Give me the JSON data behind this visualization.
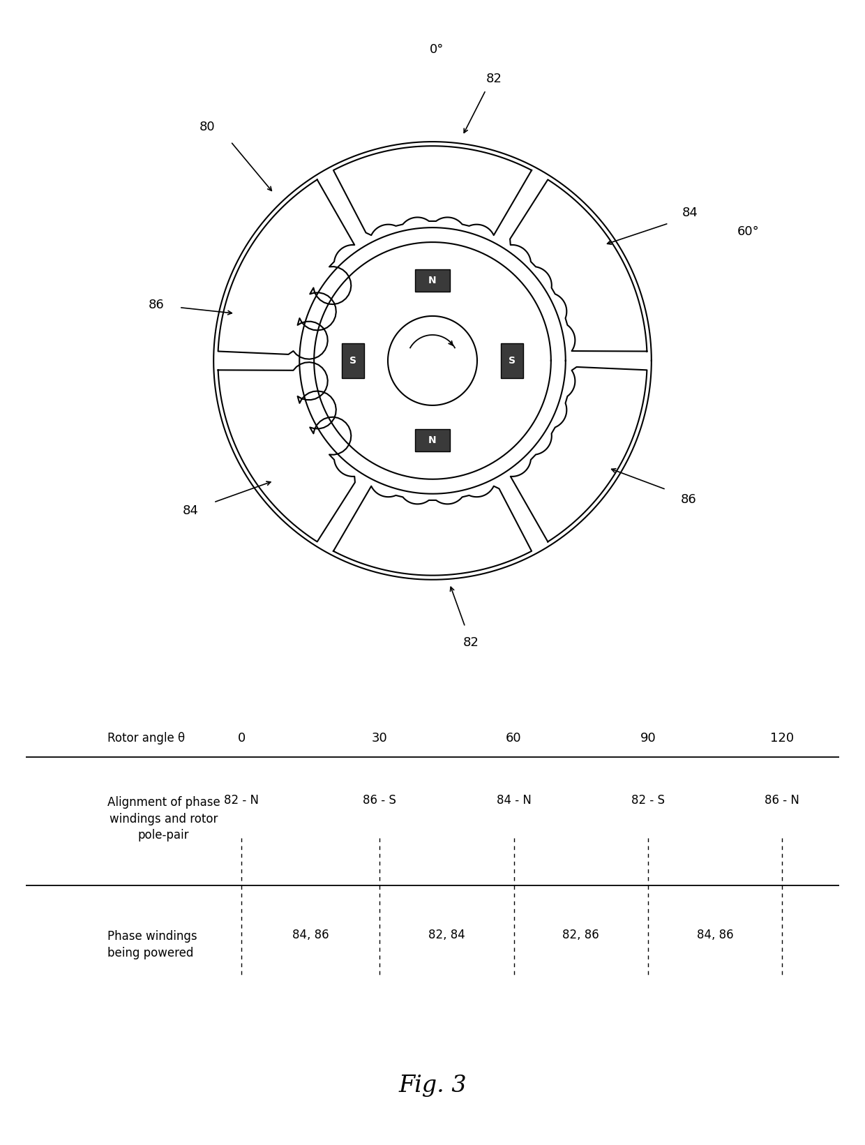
{
  "title_top": "0°",
  "label_60": "60°",
  "label_80": "80",
  "label_82_top": "82",
  "label_82_bot": "82",
  "label_84_left": "84",
  "label_84_right": "84",
  "label_86_left": "86",
  "label_86_right": "86",
  "fig_label": "Fig. 3",
  "table_header": [
    "Rotor angle θ",
    "0",
    "30",
    "60",
    "90",
    "120"
  ],
  "row1_label": "Alignment of phase\nwindings and rotor\npole-pair",
  "row1_values": [
    "82 - N",
    "86 - S",
    "84 - N",
    "82 - S",
    "86 - N"
  ],
  "row2_label": "Phase windings\nbeing powered",
  "row2_values": [
    "84, 86",
    "82, 84",
    "82, 86",
    "84, 86"
  ],
  "bg_color": "#ffffff",
  "line_color": "#000000"
}
